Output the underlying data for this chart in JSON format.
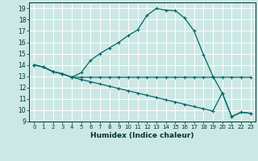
{
  "xlabel": "Humidex (Indice chaleur)",
  "bg_color": "#cce8e5",
  "grid_color": "#ffffff",
  "line_color": "#006666",
  "xlim": [
    -0.5,
    23.5
  ],
  "ylim": [
    9,
    19.5
  ],
  "xticks": [
    0,
    1,
    2,
    3,
    4,
    5,
    6,
    7,
    8,
    9,
    10,
    11,
    12,
    13,
    14,
    15,
    16,
    17,
    18,
    19,
    20,
    21,
    22,
    23
  ],
  "yticks": [
    9,
    10,
    11,
    12,
    13,
    14,
    15,
    16,
    17,
    18,
    19
  ],
  "series1_x": [
    0,
    1,
    2,
    3,
    4,
    5,
    6,
    7,
    8,
    9,
    10,
    11,
    12,
    13,
    14,
    15,
    16,
    17,
    18,
    19,
    20,
    21,
    22,
    23
  ],
  "series1_y": [
    14.0,
    13.8,
    13.4,
    13.2,
    12.9,
    12.9,
    12.9,
    12.9,
    12.9,
    12.9,
    12.9,
    12.9,
    12.9,
    12.9,
    12.9,
    12.9,
    12.9,
    12.9,
    12.9,
    12.9,
    12.9,
    12.9,
    12.9,
    12.9
  ],
  "series2_x": [
    0,
    1,
    2,
    3,
    4,
    5,
    6,
    7,
    8,
    9,
    10,
    11,
    12,
    13,
    14,
    15,
    16,
    17,
    18,
    19,
    20,
    21,
    22,
    23
  ],
  "series2_y": [
    14.0,
    13.8,
    13.4,
    13.2,
    12.9,
    12.7,
    12.5,
    12.3,
    12.1,
    11.9,
    11.7,
    11.5,
    11.3,
    11.1,
    10.9,
    10.7,
    10.5,
    10.3,
    10.1,
    9.9,
    11.5,
    9.4,
    9.8,
    9.7
  ],
  "series3_x": [
    0,
    1,
    2,
    3,
    4,
    5,
    6,
    7,
    8,
    9,
    10,
    11,
    12,
    13,
    14,
    15,
    16,
    17,
    18,
    19,
    20,
    21,
    22,
    23
  ],
  "series3_y": [
    14.0,
    13.8,
    13.4,
    13.2,
    12.9,
    13.3,
    14.4,
    15.0,
    15.5,
    16.0,
    16.6,
    17.1,
    18.4,
    19.0,
    18.85,
    18.8,
    18.15,
    17.0,
    14.9,
    13.0,
    11.5,
    9.4,
    9.8,
    9.7
  ]
}
